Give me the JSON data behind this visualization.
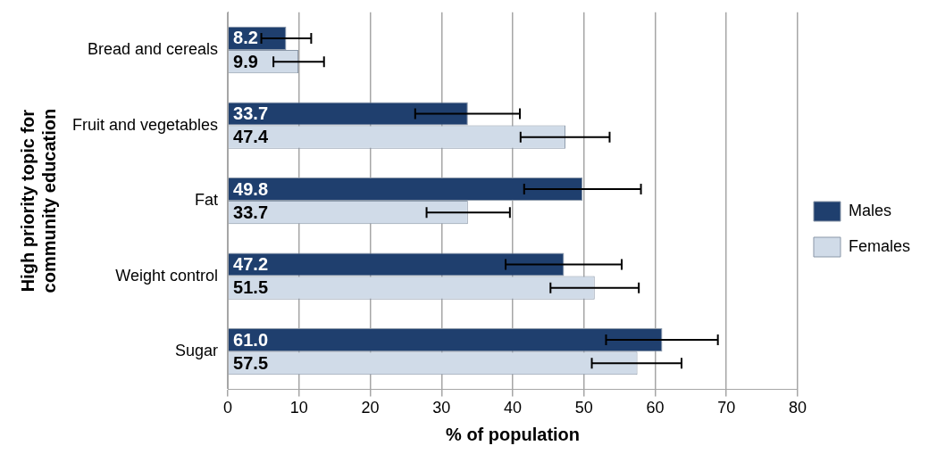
{
  "chart_data": {
    "type": "bar",
    "orientation": "horizontal",
    "categories": [
      "Bread and cereals",
      "Fruit and vegetables",
      "Fat",
      "Weight control",
      "Sugar"
    ],
    "series": [
      {
        "name": "Males",
        "color": "#1f3f6e",
        "values": [
          8.2,
          33.7,
          49.8,
          47.2,
          61.0
        ],
        "value_labels": [
          "8.2",
          "33.7",
          "49.8",
          "47.2",
          "61.0"
        ],
        "errors": [
          [
            4.7,
            11.7
          ],
          [
            26.3,
            41.0
          ],
          [
            41.6,
            58.0
          ],
          [
            39.0,
            55.3
          ],
          [
            53.1,
            68.8
          ]
        ]
      },
      {
        "name": "Females",
        "color": "#d0dbe8",
        "values": [
          9.9,
          47.4,
          33.7,
          51.5,
          57.5
        ],
        "value_labels": [
          "9.9",
          "47.4",
          "33.7",
          "51.5",
          "57.5"
        ],
        "errors": [
          [
            6.4,
            13.5
          ],
          [
            41.1,
            53.6
          ],
          [
            27.9,
            39.6
          ],
          [
            45.3,
            57.7
          ],
          [
            51.1,
            63.7
          ]
        ]
      }
    ],
    "xlabel": "% of population",
    "ylabel": "High priority topic for\ncommunity education",
    "xlim": [
      0,
      80
    ],
    "xticks": [
      0,
      10,
      20,
      30,
      40,
      50,
      60,
      70,
      80
    ],
    "grid": "x",
    "legend": "right"
  }
}
